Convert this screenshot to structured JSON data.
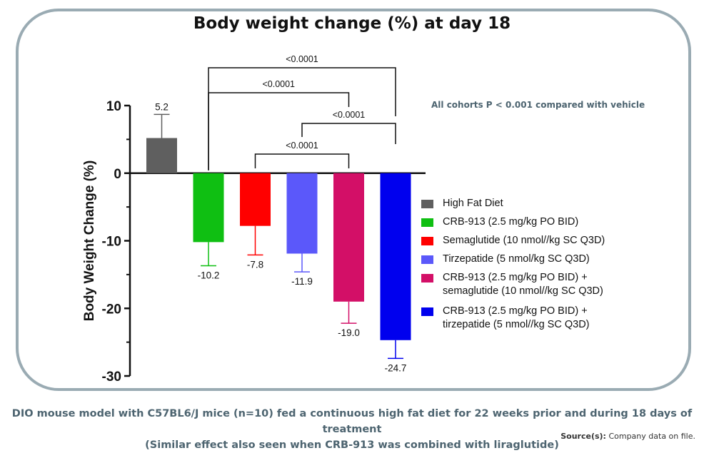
{
  "title": "Body weight change (%) at day 18",
  "note": "All cohorts P < 0.001 compared with vehicle",
  "caption_line1": "DIO mouse model with C57BL6/J mice (n=10) fed a continuous high fat diet for 22 weeks prior and during 18 days of treatment",
  "caption_line2": "(Similar effect also seen when CRB-913 was combined with liraglutide)",
  "source_label": "Source(s):",
  "source_text": " Company data on file.",
  "chart_data": {
    "type": "bar",
    "ylabel": "Body Weight Change (%)",
    "ylim": [
      -30,
      10
    ],
    "yticks": [
      10,
      0,
      -10,
      -20,
      -30
    ],
    "grid": false,
    "legend_position": "right",
    "series": [
      {
        "name": "High Fat Diet",
        "lines": [
          "High Fat Diet"
        ],
        "value": 5.2,
        "label": "5.2",
        "error": 3.5,
        "color": "#5f5f5f"
      },
      {
        "name": "CRB-913 (2.5 mg/kg PO BID)",
        "lines": [
          "CRB-913 (2.5 mg/kg PO BID)"
        ],
        "value": -10.2,
        "label": "-10.2",
        "error": 3.5,
        "color": "#0fbf12"
      },
      {
        "name": "Semaglutide (10 nmol//kg SC Q3D)",
        "lines": [
          "Semaglutide (10 nmol//kg SC Q3D)"
        ],
        "value": -7.8,
        "label": "-7.8",
        "error": 4.3,
        "color": "#ff0000"
      },
      {
        "name": "Tirzepatide (5 nmol/kg SC Q3D)",
        "lines": [
          "Tirzepatide (5 nmol/kg SC Q3D)"
        ],
        "value": -11.9,
        "label": "-11.9",
        "error": 2.7,
        "color": "#5b58fa"
      },
      {
        "name": "CRB-913 (2.5 mg/kg PO BID) + semaglutide  (10 nmol//kg SC Q3D)",
        "lines": [
          "CRB-913 (2.5 mg/kg PO BID) +",
          "semaglutide  (10 nmol//kg SC Q3D)"
        ],
        "value": -19.0,
        "label": "-19.0",
        "error": 3.2,
        "color": "#d30f67"
      },
      {
        "name": "CRB-913 (2.5 mg/kg PO BID) + tirzepatide (5 nmol//kg SC Q3D)",
        "lines": [
          "CRB-913 (2.5 mg/kg PO BID) +",
          "tirzepatide (5 nmol//kg SC Q3D)"
        ],
        "value": -24.7,
        "label": "-24.7",
        "error": 2.7,
        "color": "#0000ee"
      }
    ],
    "comparisons": [
      {
        "from": 1,
        "to": 5,
        "label": "<0.0001"
      },
      {
        "from": 1,
        "to": 4,
        "label": "<0.0001"
      },
      {
        "from": 3,
        "to": 5,
        "label": "<0.0001"
      },
      {
        "from": 2,
        "to": 4,
        "label": "<0.0001"
      }
    ]
  }
}
